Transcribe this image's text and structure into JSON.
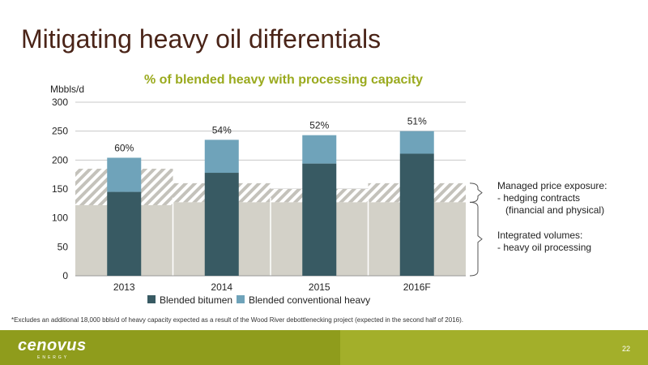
{
  "slide": {
    "title": "Mitigating heavy oil differentials",
    "page_number": "22"
  },
  "footnote": "*Excludes an additional 18,000 bbls/d of heavy capacity expected as a result of the Wood River debottlenecking project (expected in the second half of 2016).",
  "logo": {
    "text": "cenovus",
    "sub": "ENERGY"
  },
  "annotations": {
    "managed": "Managed price exposure:\n- hedging contracts\n   (financial and physical)",
    "integrated": "Integrated volumes:\n- heavy oil processing"
  },
  "colors": {
    "bitumen": "#385a63",
    "conventional": "#6fa3ba",
    "capacity_base": "#d3d1c8",
    "hatch_stripe": "#c4c2bb",
    "grid": "#c8c8c8",
    "title": "#4a2418",
    "subtitle": "#9aaa1e",
    "footer": "#8f9c1c"
  },
  "chart_data": {
    "type": "bar",
    "title": "% of blended heavy with processing capacity",
    "ylabel": "Mbbls/d",
    "ylim": [
      0,
      300
    ],
    "yticks": [
      0,
      50,
      100,
      150,
      200,
      250,
      300
    ],
    "grid": true,
    "legend_position": "bottom",
    "categories": [
      "2013",
      "2014",
      "2015",
      "2016F"
    ],
    "series": [
      {
        "name": "Blended bitumen",
        "values": [
          145,
          178,
          194,
          211
        ]
      },
      {
        "name": "Blended conventional heavy",
        "values": [
          59,
          57,
          49,
          39
        ]
      }
    ],
    "percent_labels": [
      "60%",
      "54%",
      "52%",
      "51%"
    ],
    "background_capacity": {
      "x": [
        2012.5,
        2013.5,
        2014.5,
        2015.5,
        2016.5
      ],
      "integrated_processing": [
        122,
        127,
        127,
        127
      ],
      "total_with_hedging": [
        185,
        160,
        150,
        160
      ],
      "interval_boundaries": [
        2013.5,
        2014.5,
        2015.5
      ],
      "boundary_tops": [
        135,
        135,
        135
      ]
    }
  }
}
